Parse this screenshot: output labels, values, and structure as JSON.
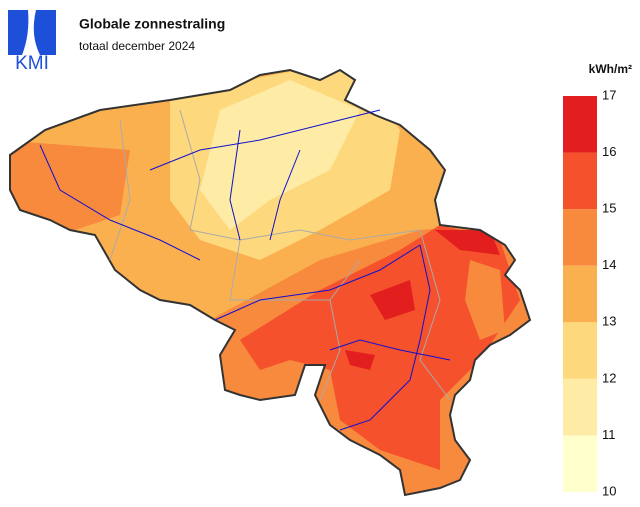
{
  "header": {
    "logo": "KMI",
    "title": "Globale zonnestraling",
    "subtitle": "totaal december 2024"
  },
  "legend": {
    "unit": "kWh/m²",
    "ticks": [
      10,
      11,
      12,
      13,
      14,
      15,
      16,
      17
    ],
    "colors": [
      "#ffffcc",
      "#feeba6",
      "#fed87c",
      "#fbb050",
      "#f88a3e",
      "#f4512c",
      "#e31e1e"
    ]
  }
}
